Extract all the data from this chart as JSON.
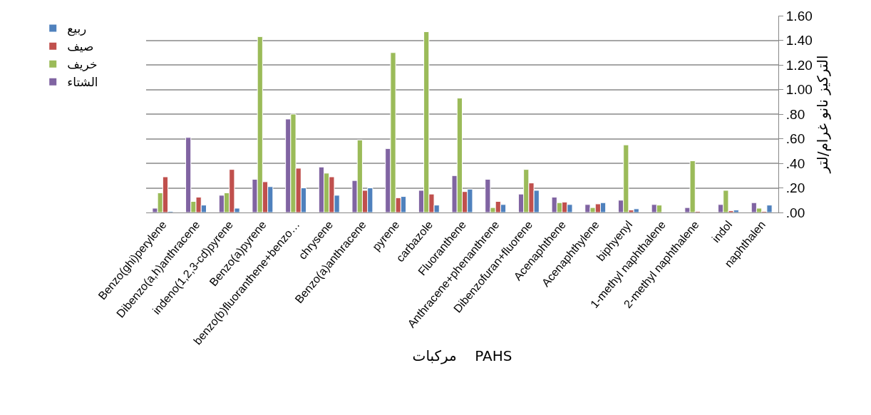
{
  "chart_data": {
    "type": "bar",
    "xlabel": "مركبات    PAHS",
    "ylabel": "التركيز نانو غرام/لتر",
    "categories": [
      "Benzo(ghi)perylene",
      "Dibenzo(a,h)anthracene",
      "indeno(1,2,3-cd)pyrene",
      "Benzo(a)pyrene",
      "benzo(b)fluoranthene+benzo…",
      "chrysene",
      "Benzo(a)anthracene",
      "pyrene",
      "carbazole",
      "Fluoranthene",
      "Anthracene+phenanthrene",
      "Dibenzofuran+fluorene",
      "Acenaphthene",
      "Acenaphthylene",
      "biphyenyl",
      "1-methyl naphthalene",
      "2-methyl naphthalene",
      "indol",
      "naphthalen"
    ],
    "series": [
      {
        "name": "الشتاء",
        "color": "#8064a2",
        "values": [
          0.035,
          0.61,
          0.14,
          0.27,
          0.76,
          0.37,
          0.26,
          0.52,
          0.18,
          0.3,
          0.27,
          0.15,
          0.125,
          0.065,
          0.1,
          0.065,
          0.04,
          0.065,
          0.08
        ]
      },
      {
        "name": "خريف",
        "color": "#9bbb59",
        "values": [
          0.16,
          0.09,
          0.16,
          1.43,
          0.8,
          0.32,
          0.59,
          1.3,
          1.47,
          0.93,
          0.04,
          0.35,
          0.08,
          0.04,
          0.55,
          0.06,
          0.42,
          0.18,
          0.035
        ]
      },
      {
        "name": "صيف",
        "color": "#c0504d",
        "values": [
          0.29,
          0.125,
          0.35,
          0.25,
          0.36,
          0.29,
          0.18,
          0.12,
          0.15,
          0.17,
          0.09,
          0.24,
          0.085,
          0.07,
          0.02,
          null,
          0.01,
          0.015,
          0.01
        ]
      },
      {
        "name": "ربيع",
        "color": "#4f81bd",
        "values": [
          0.01,
          0.06,
          0.035,
          0.21,
          0.2,
          0.14,
          0.2,
          0.13,
          0.06,
          0.19,
          0.065,
          0.18,
          0.065,
          0.08,
          0.03,
          null,
          null,
          0.02,
          0.06
        ]
      }
    ],
    "ylim": [
      0,
      1.6
    ],
    "yticks": [
      {
        "value": 0,
        "label": ".00"
      },
      {
        "value": 0.2,
        "label": ".20"
      },
      {
        "value": 0.4,
        "label": ".40"
      },
      {
        "value": 0.6,
        "label": ".60"
      },
      {
        "value": 0.8,
        "label": ".80"
      },
      {
        "value": 1,
        "label": "1.00"
      },
      {
        "value": 1.2,
        "label": "1.20"
      },
      {
        "value": 1.4,
        "label": "1.40"
      },
      {
        "value": 1.6,
        "label": "1.60"
      }
    ],
    "grid": "y",
    "legend": "left"
  }
}
